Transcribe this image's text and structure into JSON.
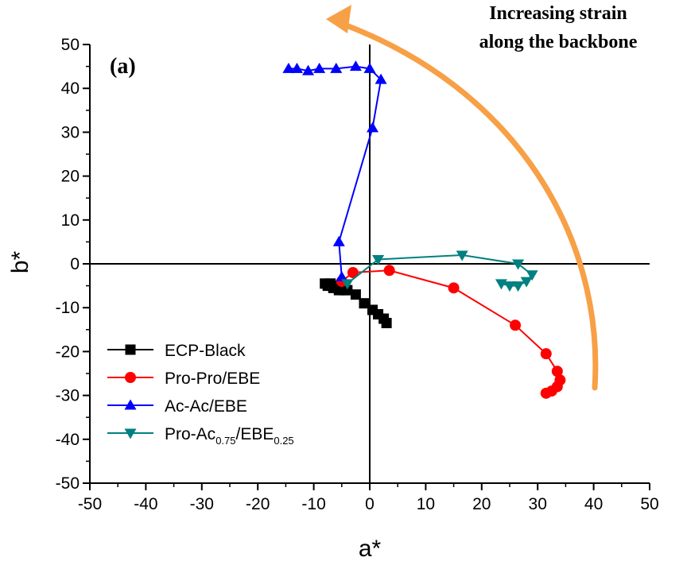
{
  "chart_data": {
    "type": "scatter",
    "panel_label": "(a)",
    "xlabel": "a*",
    "ylabel": "b*",
    "xlim": [
      -50,
      50
    ],
    "ylim": [
      -50,
      50
    ],
    "xticks": [
      "-50",
      "-40",
      "-30",
      "-20",
      "-10",
      "0",
      "10",
      "20",
      "30",
      "40",
      "50"
    ],
    "yticks": [
      "50",
      "40",
      "30",
      "20",
      "10",
      "0",
      "-10",
      "-20",
      "-30",
      "-40",
      "-50"
    ],
    "zero_lines": true,
    "legend_position": "bottom-left",
    "annotation": {
      "line1": "Increasing strain",
      "line2": "along the backbone",
      "arrow_color": "#f7a046"
    },
    "series": [
      {
        "name": "ECP-Black",
        "name_main": "ECP-Black",
        "name_sub1": "",
        "name_mid": "",
        "name_sub2": "",
        "color": "#000000",
        "marker": "square",
        "x": [
          -8,
          -7.5,
          -7,
          -6.5,
          -6,
          -5.5,
          -5,
          -4.5,
          -4,
          -2.5,
          -1,
          0.5,
          1.5,
          2.5,
          3
        ],
        "y": [
          -4.5,
          -5,
          -4.5,
          -5.5,
          -5,
          -6,
          -5.5,
          -6,
          -6,
          -7,
          -9,
          -10.5,
          -11.5,
          -12.5,
          -13.5
        ]
      },
      {
        "name": "Pro-Pro/EBE",
        "name_main": "Pro-Pro/EBE",
        "name_sub1": "",
        "name_mid": "",
        "name_sub2": "",
        "color": "#ff0000",
        "marker": "circle",
        "x": [
          -5,
          -3,
          3.5,
          15,
          26,
          31.5,
          33.5,
          34,
          33.5,
          32.5,
          31.5
        ],
        "y": [
          -4,
          -2,
          -1.5,
          -5.5,
          -14,
          -20.5,
          -24.5,
          -26.5,
          -28,
          -29,
          -29.5
        ]
      },
      {
        "name": "Ac-Ac/EBE",
        "name_main": "Ac-Ac/EBE",
        "name_sub1": "",
        "name_mid": "",
        "name_sub2": "",
        "color": "#0000ff",
        "marker": "triangle-up",
        "x": [
          -5,
          -5.5,
          0.5,
          2,
          0,
          -2.5,
          -6,
          -9,
          -11,
          -13,
          -14.5
        ],
        "y": [
          -3,
          5,
          31,
          42,
          44.5,
          45,
          44.5,
          44.5,
          44,
          44.5,
          44.5
        ]
      },
      {
        "name": "Pro-Ac0.75/EBE0.25",
        "name_main": "Pro-Ac",
        "name_sub1": "0.75",
        "name_mid": "/EBE",
        "name_sub2": "0.25",
        "color": "#008080",
        "marker": "triangle-down",
        "x": [
          -4,
          1.5,
          16.5,
          26.5,
          29,
          28,
          26.5,
          25,
          23.5
        ],
        "y": [
          -4.5,
          1,
          2,
          0,
          -2.5,
          -4,
          -5,
          -5,
          -4.5
        ]
      }
    ]
  }
}
